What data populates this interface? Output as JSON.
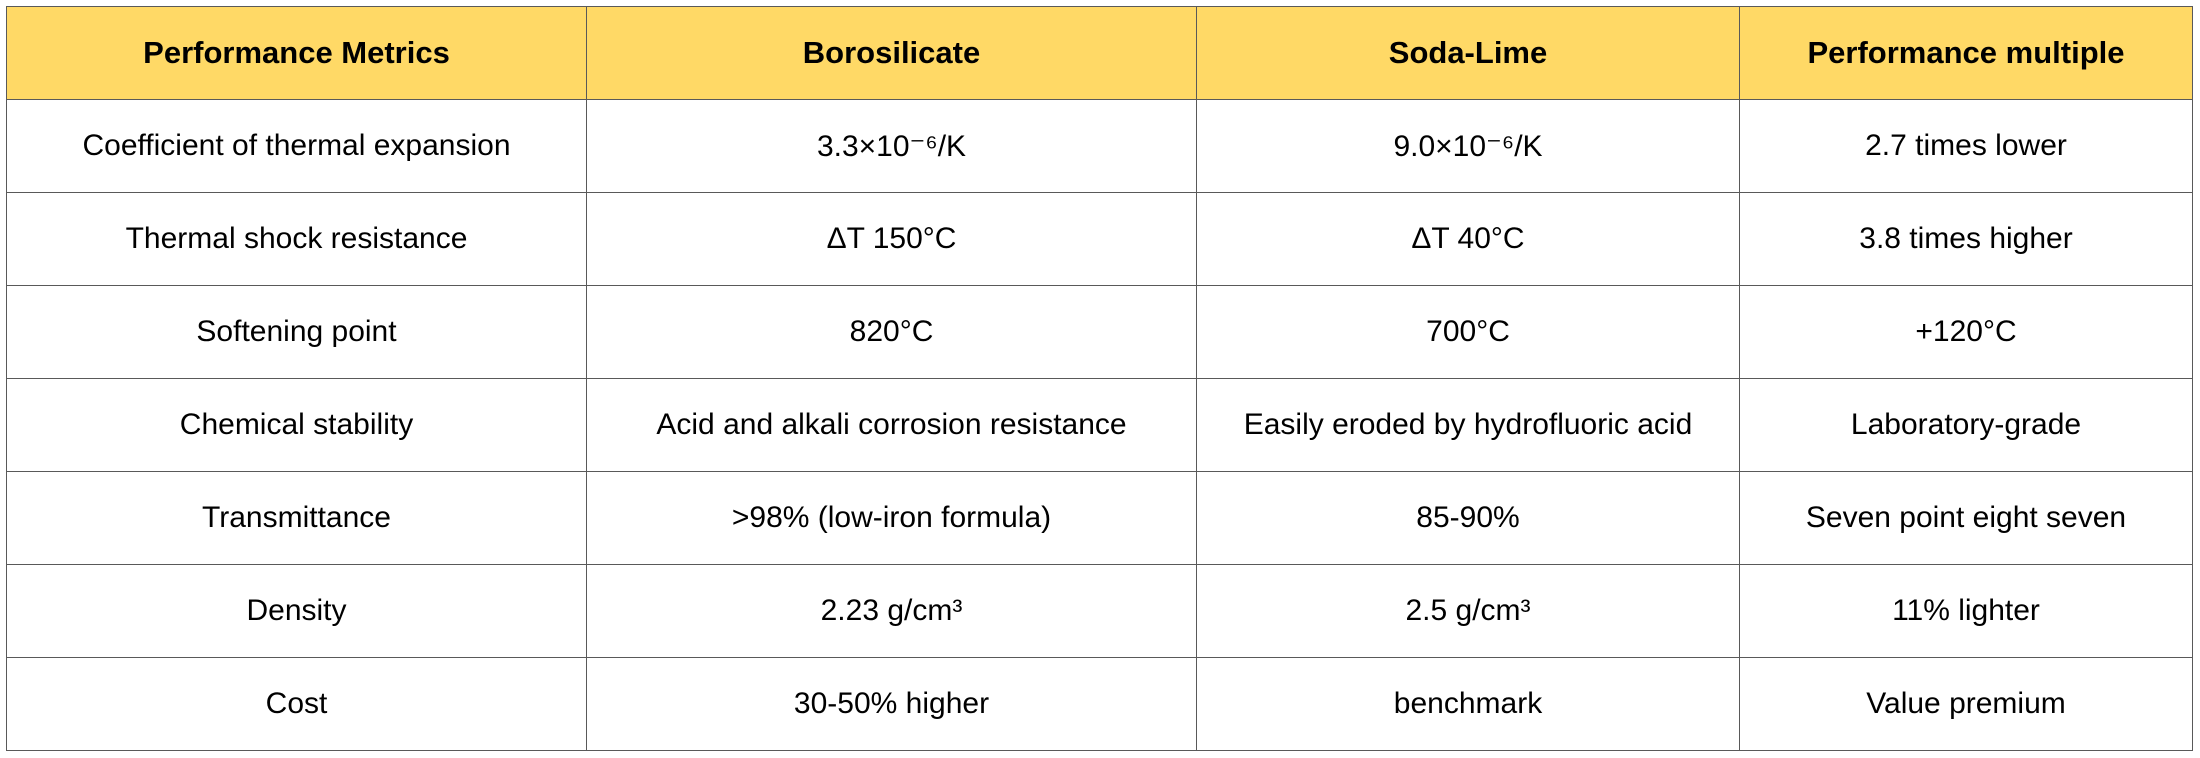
{
  "table": {
    "columns": [
      "Performance Metrics",
      "Borosilicate",
      "Soda-Lime",
      "Performance multiple"
    ],
    "rows": [
      [
        "Coefficient of thermal expansion",
        "3.3×10⁻⁶/K",
        "9.0×10⁻⁶/K",
        "2.7 times lower"
      ],
      [
        "Thermal shock resistance",
        "ΔT 150°C",
        "ΔT 40°C",
        "3.8 times higher"
      ],
      [
        "Softening point",
        "820°C",
        "700°C",
        "+120°C"
      ],
      [
        "Chemical stability",
        "Acid and alkali corrosion resistance",
        "Easily eroded by hydrofluoric acid",
        "Laboratory-grade"
      ],
      [
        "Transmittance",
        ">98% (low-iron formula)",
        "85-90%",
        "Seven point eight seven"
      ],
      [
        "Density",
        "2.23 g/cm³",
        "2.5 g/cm³",
        "11% lighter"
      ],
      [
        "Cost",
        "30-50% higher",
        "benchmark",
        "Value premium"
      ]
    ]
  },
  "colors": {
    "header_background": "#ffd966",
    "border": "#595959",
    "text": "#000000"
  }
}
